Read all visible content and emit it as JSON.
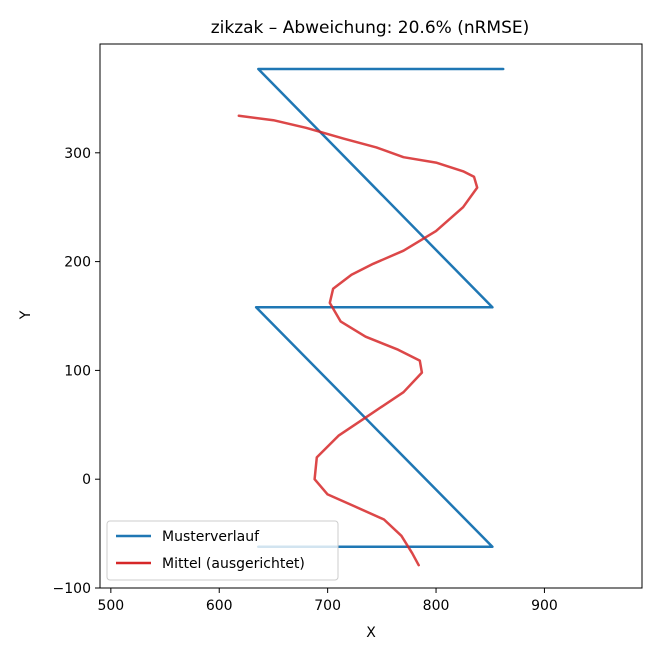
{
  "chart_data": {
    "type": "line",
    "title": "zikzak – Abweichung: 20.6% (nRMSE)",
    "xlabel": "X",
    "ylabel": "Y",
    "xlim": [
      490,
      990
    ],
    "ylim": [
      -100,
      400
    ],
    "xticks": [
      500,
      600,
      700,
      800,
      900
    ],
    "yticks": [
      -100,
      0,
      100,
      200,
      300
    ],
    "xtick_labels": [
      "500",
      "600",
      "700",
      "800",
      "900"
    ],
    "ytick_labels": [
      "−100",
      "0",
      "100",
      "200",
      "300"
    ],
    "grid": false,
    "legend_position": "lower-left",
    "series": [
      {
        "name": "Musterverlauf",
        "color": "#1f77b4",
        "x": [
          862,
          636,
          852,
          634,
          852,
          636
        ],
        "y": [
          377,
          377,
          158,
          158,
          -62,
          -62
        ]
      },
      {
        "name": "Mittel (ausgerichtet)",
        "color": "#d62728",
        "x": [
          618,
          650,
          680,
          715,
          745,
          770,
          800,
          825,
          835,
          838,
          825,
          800,
          770,
          742,
          722,
          705,
          702,
          712,
          735,
          765,
          785,
          787,
          770,
          740,
          710,
          690,
          688,
          700,
          725,
          752,
          768,
          778,
          784
        ],
        "y": [
          334,
          330,
          323,
          313,
          305,
          296,
          291,
          283,
          278,
          268,
          250,
          228,
          210,
          198,
          188,
          175,
          162,
          145,
          131,
          119,
          109,
          98,
          80,
          60,
          40,
          20,
          0,
          -14,
          -25,
          -37,
          -52,
          -68,
          -79
        ]
      }
    ]
  }
}
